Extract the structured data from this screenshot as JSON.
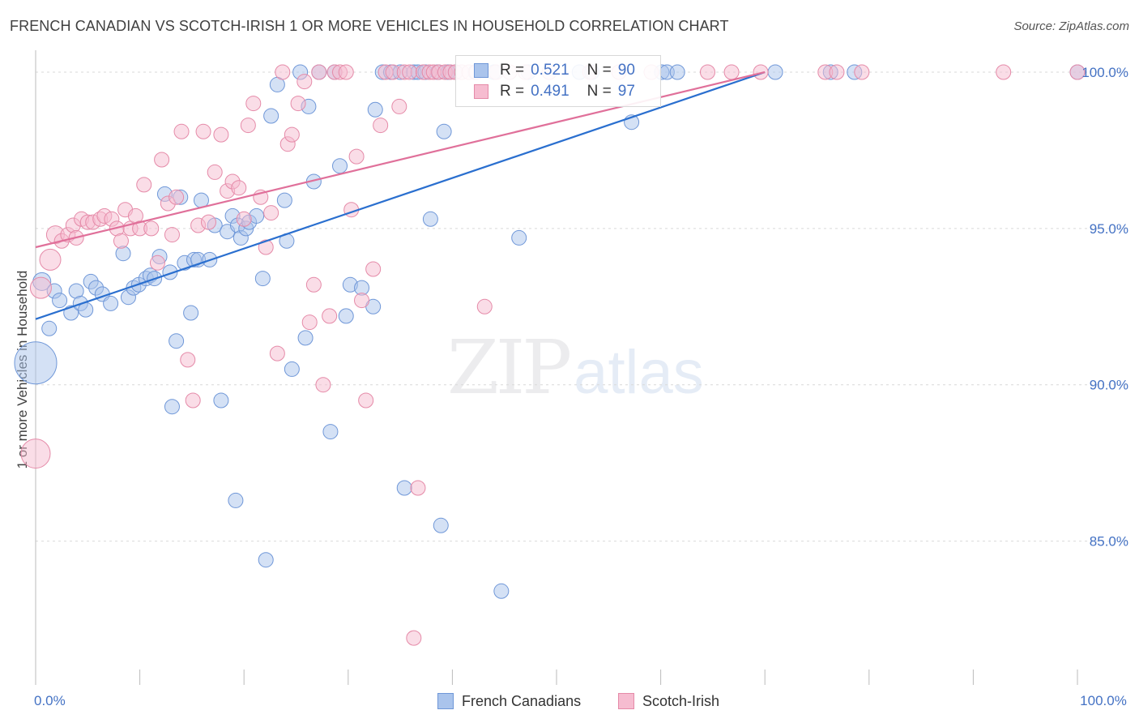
{
  "header": {
    "title": "FRENCH CANADIAN VS SCOTCH-IRISH 1 OR MORE VEHICLES IN HOUSEHOLD CORRELATION CHART",
    "source": "Source: ZipAtlas.com"
  },
  "watermark": {
    "zip": "ZIP",
    "atlas": "atlas"
  },
  "legend": {
    "rows": [
      {
        "r_label": "R =",
        "r_value": "0.521",
        "n_label": "N =",
        "n_value": "90",
        "color": "#aac4ec",
        "border": "#6f97d8"
      },
      {
        "r_label": "R =",
        "r_value": "0.491",
        "n_label": "N =",
        "n_value": "97",
        "color": "#f6bcd0",
        "border": "#e58aa8"
      }
    ],
    "bottom": [
      {
        "label": "French Canadians",
        "color": "#aac4ec",
        "border": "#6f97d8"
      },
      {
        "label": "Scotch-Irish",
        "color": "#f6bcd0",
        "border": "#e58aa8"
      }
    ]
  },
  "chart_data": {
    "type": "scatter",
    "title": "FRENCH CANADIAN VS SCOTCH-IRISH 1 OR MORE VEHICLES IN HOUSEHOLD CORRELATION CHART",
    "xlabel": "",
    "ylabel": "1 or more Vehicles in Household",
    "xlim": [
      0,
      100
    ],
    "ylim": [
      80.4,
      100.7
    ],
    "x_ticks": [
      0,
      100
    ],
    "x_tick_labels": [
      "0.0%",
      "100.0%"
    ],
    "y_ticks": [
      85,
      90,
      95,
      100
    ],
    "y_tick_labels": [
      "85.0%",
      "90.0%",
      "95.0%",
      "100.0%"
    ],
    "grid": true,
    "legend_position": "top-center",
    "series": [
      {
        "name": "French Canadians",
        "color": "#6f97d8",
        "fill": "#aac4ec",
        "line_color": "#2a6fcf",
        "trend": {
          "x": [
            0,
            70
          ],
          "y": [
            92.1,
            100.0
          ]
        },
        "points": [
          [
            0.0,
            90.7,
            26
          ],
          [
            0.6,
            93.3,
            11
          ],
          [
            1.3,
            91.8,
            9
          ],
          [
            1.8,
            93.0,
            9
          ],
          [
            2.3,
            92.7,
            9
          ],
          [
            3.4,
            92.3,
            9
          ],
          [
            3.9,
            93.0,
            9
          ],
          [
            4.3,
            92.6,
            9
          ],
          [
            4.8,
            92.4,
            9
          ],
          [
            5.3,
            93.3,
            9
          ],
          [
            5.8,
            93.1,
            9
          ],
          [
            6.4,
            92.9,
            9
          ],
          [
            7.2,
            92.6,
            9
          ],
          [
            8.4,
            94.2,
            9
          ],
          [
            8.9,
            92.8,
            9
          ],
          [
            9.4,
            93.1,
            9
          ],
          [
            9.9,
            93.2,
            9
          ],
          [
            10.6,
            93.4,
            9
          ],
          [
            11.0,
            93.5,
            9
          ],
          [
            11.4,
            93.4,
            9
          ],
          [
            11.9,
            94.1,
            9
          ],
          [
            12.4,
            96.1,
            9
          ],
          [
            12.9,
            93.6,
            9
          ],
          [
            13.1,
            89.3,
            9
          ],
          [
            13.5,
            91.4,
            9
          ],
          [
            13.9,
            96.0,
            9
          ],
          [
            14.3,
            93.9,
            9
          ],
          [
            14.9,
            92.3,
            9
          ],
          [
            15.2,
            94.0,
            9
          ],
          [
            15.6,
            94.0,
            9
          ],
          [
            15.9,
            95.9,
            9
          ],
          [
            16.7,
            94.0,
            9
          ],
          [
            17.2,
            95.1,
            9
          ],
          [
            17.8,
            89.5,
            9
          ],
          [
            18.4,
            94.9,
            9
          ],
          [
            18.9,
            95.4,
            9
          ],
          [
            19.2,
            86.3,
            9
          ],
          [
            19.4,
            95.1,
            9
          ],
          [
            19.7,
            94.7,
            9
          ],
          [
            20.2,
            95.0,
            9
          ],
          [
            20.5,
            95.2,
            9
          ],
          [
            21.2,
            95.4,
            9
          ],
          [
            21.8,
            93.4,
            9
          ],
          [
            22.1,
            84.4,
            9
          ],
          [
            22.6,
            98.6,
            9
          ],
          [
            23.2,
            99.6,
            9
          ],
          [
            23.9,
            95.9,
            9
          ],
          [
            24.1,
            94.6,
            9
          ],
          [
            24.6,
            90.5,
            9
          ],
          [
            25.4,
            100.0,
            9
          ],
          [
            25.9,
            91.5,
            9
          ],
          [
            26.2,
            98.9,
            9
          ],
          [
            26.7,
            96.5,
            9
          ],
          [
            27.2,
            100.0,
            9
          ],
          [
            28.3,
            88.5,
            9
          ],
          [
            28.7,
            100.0,
            9
          ],
          [
            29.2,
            97.0,
            9
          ],
          [
            29.8,
            92.2,
            9
          ],
          [
            30.2,
            93.2,
            9
          ],
          [
            31.3,
            93.1,
            9
          ],
          [
            32.4,
            92.5,
            9
          ],
          [
            32.6,
            98.8,
            9
          ],
          [
            33.3,
            100.0,
            9
          ],
          [
            34.1,
            100.0,
            9
          ],
          [
            35.0,
            100.0,
            9
          ],
          [
            35.4,
            86.7,
            9
          ],
          [
            36.3,
            100.0,
            9
          ],
          [
            36.7,
            100.0,
            9
          ],
          [
            37.4,
            100.0,
            9
          ],
          [
            37.9,
            95.3,
            9
          ],
          [
            38.6,
            100.0,
            9
          ],
          [
            38.9,
            85.5,
            9
          ],
          [
            39.2,
            98.1,
            9
          ],
          [
            39.6,
            100.0,
            9
          ],
          [
            40.3,
            100.0,
            9
          ],
          [
            42.2,
            100.0,
            9
          ],
          [
            44.0,
            100.0,
            9
          ],
          [
            44.7,
            83.4,
            9
          ],
          [
            46.4,
            94.7,
            9
          ],
          [
            47.3,
            100.0,
            9
          ],
          [
            52.2,
            100.0,
            9
          ],
          [
            53.4,
            100.0,
            9
          ],
          [
            57.2,
            98.4,
            9
          ],
          [
            60.1,
            100.0,
            9
          ],
          [
            60.6,
            100.0,
            9
          ],
          [
            61.6,
            100.0,
            9
          ],
          [
            71.0,
            100.0,
            9
          ],
          [
            76.3,
            100.0,
            9
          ],
          [
            78.6,
            100.0,
            9
          ],
          [
            100.0,
            100.0,
            9
          ]
        ]
      },
      {
        "name": "Scotch-Irish",
        "color": "#e58aa8",
        "fill": "#f6bcd0",
        "line_color": "#e0709a",
        "trend": {
          "x": [
            0,
            70
          ],
          "y": [
            94.4,
            100.0
          ]
        },
        "points": [
          [
            0.0,
            87.8,
            18
          ],
          [
            0.5,
            93.1,
            13
          ],
          [
            1.4,
            94.0,
            13
          ],
          [
            1.9,
            94.8,
            11
          ],
          [
            2.5,
            94.6,
            9
          ],
          [
            3.1,
            94.8,
            9
          ],
          [
            3.6,
            95.1,
            9
          ],
          [
            3.9,
            94.7,
            9
          ],
          [
            4.4,
            95.3,
            9
          ],
          [
            5.0,
            95.2,
            9
          ],
          [
            5.5,
            95.2,
            9
          ],
          [
            6.2,
            95.3,
            9
          ],
          [
            6.6,
            95.4,
            9
          ],
          [
            7.3,
            95.3,
            9
          ],
          [
            7.8,
            95.0,
            9
          ],
          [
            8.2,
            94.6,
            9
          ],
          [
            8.6,
            95.6,
            9
          ],
          [
            9.1,
            95.0,
            9
          ],
          [
            9.6,
            95.4,
            9
          ],
          [
            10.0,
            95.0,
            9
          ],
          [
            10.4,
            96.4,
            9
          ],
          [
            11.1,
            95.0,
            9
          ],
          [
            11.7,
            93.9,
            9
          ],
          [
            12.1,
            97.2,
            9
          ],
          [
            12.7,
            95.8,
            9
          ],
          [
            13.1,
            94.8,
            9
          ],
          [
            13.5,
            96.0,
            9
          ],
          [
            14.0,
            98.1,
            9
          ],
          [
            14.6,
            90.8,
            9
          ],
          [
            15.1,
            89.5,
            9
          ],
          [
            15.6,
            95.1,
            9
          ],
          [
            16.1,
            98.1,
            9
          ],
          [
            16.6,
            95.2,
            9
          ],
          [
            17.2,
            96.8,
            9
          ],
          [
            17.8,
            98.0,
            9
          ],
          [
            18.4,
            96.2,
            9
          ],
          [
            18.9,
            96.5,
            9
          ],
          [
            19.5,
            96.3,
            9
          ],
          [
            20.0,
            95.3,
            9
          ],
          [
            20.4,
            98.3,
            9
          ],
          [
            20.9,
            99.0,
            9
          ],
          [
            21.6,
            96.0,
            9
          ],
          [
            22.1,
            94.4,
            9
          ],
          [
            22.6,
            95.5,
            9
          ],
          [
            23.2,
            91.0,
            9
          ],
          [
            23.7,
            100.0,
            9
          ],
          [
            24.2,
            97.7,
            9
          ],
          [
            24.6,
            98.0,
            9
          ],
          [
            25.2,
            99.0,
            9
          ],
          [
            25.8,
            99.7,
            9
          ],
          [
            26.3,
            92.0,
            9
          ],
          [
            26.7,
            93.2,
            9
          ],
          [
            27.2,
            100.0,
            9
          ],
          [
            27.6,
            90.0,
            9
          ],
          [
            28.2,
            92.2,
            9
          ],
          [
            28.7,
            100.0,
            9
          ],
          [
            29.2,
            100.0,
            9
          ],
          [
            29.8,
            100.0,
            9
          ],
          [
            30.3,
            95.6,
            9
          ],
          [
            30.8,
            97.3,
            9
          ],
          [
            31.3,
            92.7,
            9
          ],
          [
            31.7,
            89.5,
            9
          ],
          [
            32.4,
            93.7,
            9
          ],
          [
            33.1,
            98.3,
            9
          ],
          [
            33.6,
            100.0,
            9
          ],
          [
            34.3,
            100.0,
            9
          ],
          [
            34.9,
            98.9,
            9
          ],
          [
            35.4,
            100.0,
            9
          ],
          [
            35.9,
            100.0,
            9
          ],
          [
            36.3,
            81.9,
            9
          ],
          [
            36.7,
            86.7,
            9
          ],
          [
            37.2,
            100.0,
            9
          ],
          [
            37.8,
            100.0,
            9
          ],
          [
            38.2,
            100.0,
            9
          ],
          [
            38.7,
            100.0,
            9
          ],
          [
            39.3,
            100.0,
            9
          ],
          [
            39.8,
            100.0,
            9
          ],
          [
            40.3,
            100.0,
            9
          ],
          [
            40.9,
            100.0,
            9
          ],
          [
            41.6,
            100.0,
            9
          ],
          [
            42.3,
            100.0,
            9
          ],
          [
            43.1,
            92.5,
            9
          ],
          [
            44.2,
            100.0,
            9
          ],
          [
            45.5,
            100.0,
            9
          ],
          [
            47.0,
            100.0,
            9
          ],
          [
            49.3,
            100.0,
            9
          ],
          [
            53.2,
            100.0,
            9
          ],
          [
            56.0,
            100.0,
            9
          ],
          [
            59.1,
            100.0,
            9
          ],
          [
            64.5,
            100.0,
            9
          ],
          [
            66.8,
            100.0,
            9
          ],
          [
            69.6,
            100.0,
            9
          ],
          [
            75.8,
            100.0,
            9
          ],
          [
            76.9,
            100.0,
            9
          ],
          [
            79.3,
            100.0,
            9
          ],
          [
            92.9,
            100.0,
            9
          ],
          [
            100.0,
            100.0,
            9
          ]
        ]
      }
    ]
  }
}
